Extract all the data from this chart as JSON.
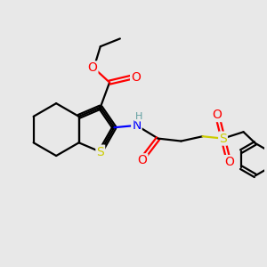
{
  "bg_color": "#e8e8e8",
  "atom_colors": {
    "C": "#000000",
    "O": "#ff0000",
    "N": "#0000ff",
    "S": "#cccc00",
    "H": "#5f9ea0"
  },
  "bond_color": "#000000",
  "figsize": [
    3.0,
    3.0
  ],
  "dpi": 100
}
